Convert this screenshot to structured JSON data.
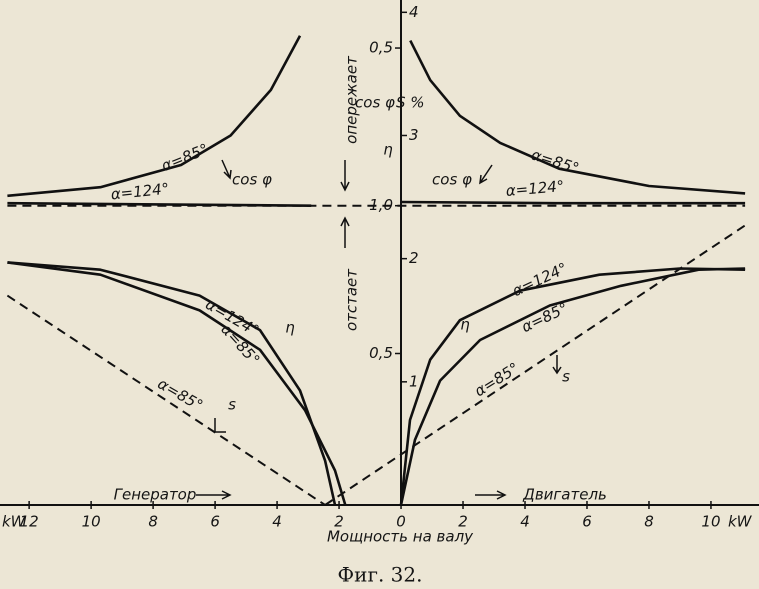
{
  "chart_data": {
    "type": "line",
    "title": "Фиг. 32.",
    "x_label": "Мощность на валу",
    "x_unit": "kW",
    "xlim": [
      -12.94,
      11.55
    ],
    "ylim": [
      0,
      4.1
    ],
    "xticks": [
      {
        "value": -12,
        "label": "12"
      },
      {
        "value": -10,
        "label": "10"
      },
      {
        "value": -8,
        "label": "8"
      },
      {
        "value": -6,
        "label": "6"
      },
      {
        "value": -4,
        "label": "4"
      },
      {
        "value": -2,
        "label": "2"
      },
      0,
      2,
      4,
      6,
      8,
      10
    ],
    "yticks": [
      1,
      2,
      3,
      4
    ],
    "cosphi_ticks": [
      {
        "value": 3.71,
        "label": "0,5"
      },
      {
        "value": 2.43,
        "label": "1,0"
      },
      {
        "value": 1.23,
        "label": "0,5"
      }
    ],
    "series": [
      {
        "color": "#111111",
        "dash": false,
        "x": [
          0.3,
          0.94,
          1.9,
          3.2,
          5.1,
          8.0,
          11.1
        ],
        "values": [
          3.77,
          3.45,
          3.16,
          2.94,
          2.73,
          2.59,
          2.53
        ]
      },
      {
        "color": "#111111",
        "dash": false,
        "x": [
          0,
          5,
          11.1
        ],
        "values": [
          2.46,
          2.45,
          2.45
        ]
      },
      {
        "color": "#111111",
        "dash": false,
        "x": [
          -3.26,
          -4.2,
          -5.5,
          -7.1,
          -9.7,
          -12.7
        ],
        "values": [
          3.81,
          3.37,
          3.0,
          2.76,
          2.58,
          2.51
        ]
      },
      {
        "color": "#111111",
        "dash": false,
        "x": [
          -12.7,
          -2.9
        ],
        "values": [
          2.45,
          2.43
        ]
      },
      {
        "color": "#111111",
        "dash": true,
        "x": [
          -12.7,
          11.1
        ],
        "values": [
          2.43,
          2.43
        ]
      },
      {
        "color": "#111111",
        "dash": false,
        "x": [
          0,
          0.29,
          0.94,
          1.9,
          3.84,
          6.4,
          9.0,
          11.1
        ],
        "values": [
          0,
          0.69,
          1.18,
          1.5,
          1.74,
          1.87,
          1.92,
          1.91
        ]
      },
      {
        "color": "#111111",
        "dash": false,
        "x": [
          0,
          0.45,
          1.26,
          2.55,
          4.8,
          7.1,
          9.6,
          11.1
        ],
        "values": [
          0,
          0.53,
          1.01,
          1.34,
          1.62,
          1.78,
          1.91,
          1.92
        ]
      },
      {
        "color": "#111111",
        "dash": false,
        "x": [
          -12.7,
          -9.7,
          -6.5,
          -4.55,
          -3.26,
          -2.45,
          -2.13
        ],
        "values": [
          1.97,
          1.91,
          1.7,
          1.42,
          0.93,
          0.36,
          0
        ]
      },
      {
        "color": "#111111",
        "dash": false,
        "x": [
          -12.7,
          -9.7,
          -6.5,
          -4.55,
          -3.1,
          -2.13,
          -1.8
        ],
        "values": [
          1.97,
          1.87,
          1.58,
          1.26,
          0.77,
          0.28,
          0
        ]
      },
      {
        "color": "#111111",
        "dash": true,
        "x": [
          -2.45,
          11.1
        ],
        "values": [
          0,
          2.27
        ]
      },
      {
        "color": "#111111",
        "dash": true,
        "x": [
          -12.7,
          -2.45
        ],
        "values": [
          1.7,
          0
        ]
      }
    ],
    "annotations": [
      "α=85°",
      "α=124°",
      "cos φ",
      "α=85°",
      "α=124°",
      "cos φ",
      "cos φ",
      "S %",
      "η",
      "α=124°",
      "α=85°",
      "η",
      "α=124°",
      "α=85°",
      "η",
      "α=85°",
      "s",
      "α=85°",
      "s",
      "опережает",
      "отстает",
      "Генератор",
      "Двигатель"
    ]
  }
}
